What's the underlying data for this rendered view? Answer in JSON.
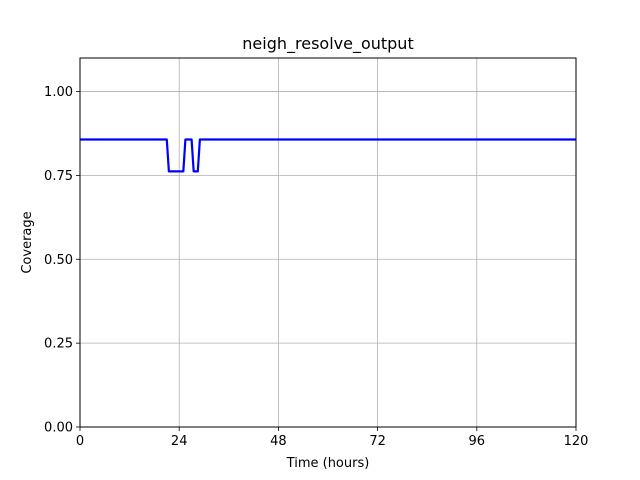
{
  "chart_data": {
    "type": "line",
    "title": "neigh_resolve_output",
    "xlabel": "Time (hours)",
    "ylabel": "Coverage",
    "xlim": [
      0,
      120
    ],
    "ylim": [
      0,
      1.1
    ],
    "xticks": [
      0,
      24,
      48,
      72,
      96,
      120
    ],
    "xtick_labels": [
      "0",
      "24",
      "48",
      "72",
      "96",
      "120"
    ],
    "yticks": [
      0,
      0.25,
      0.5,
      0.75,
      1.0
    ],
    "ytick_labels": [
      "0.00",
      "0.25",
      "0.50",
      "0.75",
      "1.00"
    ],
    "grid": true,
    "series": [
      {
        "color": "#0000ff",
        "x": [
          0,
          21,
          21.5,
          25,
          25.5,
          27,
          27.5,
          28.5,
          29,
          120
        ],
        "y": [
          0.857,
          0.857,
          0.762,
          0.762,
          0.857,
          0.857,
          0.762,
          0.762,
          0.857,
          0.857
        ]
      }
    ]
  }
}
